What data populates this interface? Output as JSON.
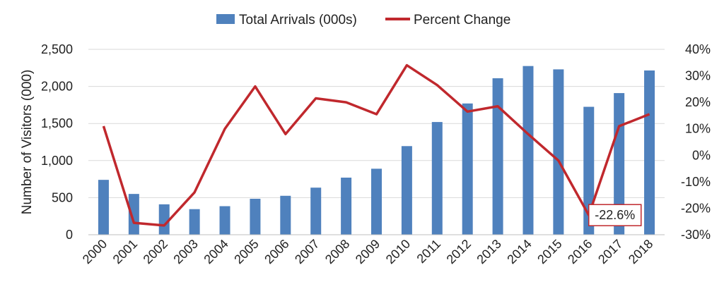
{
  "chart_data": {
    "type": "bar",
    "categories": [
      "2000",
      "2001",
      "2002",
      "2003",
      "2004",
      "2005",
      "2006",
      "2007",
      "2008",
      "2009",
      "2010",
      "2011",
      "2012",
      "2013",
      "2014",
      "2015",
      "2016",
      "2017",
      "2018"
    ],
    "series": [
      {
        "name": "Total Arrivals (000s)",
        "type": "bar",
        "axis": "left",
        "color": "#4f81bd",
        "values": [
          740,
          550,
          410,
          345,
          385,
          485,
          525,
          635,
          770,
          890,
          1195,
          1520,
          1770,
          2110,
          2275,
          2230,
          1725,
          1910,
          2215
        ]
      },
      {
        "name": "Percent Change",
        "type": "line",
        "axis": "right",
        "color": "#c0282d",
        "values": [
          11,
          -25.5,
          -26.5,
          -14,
          10,
          26,
          8,
          21.5,
          20,
          15.5,
          34,
          26.5,
          16.5,
          18.5,
          8,
          -2,
          -22.6,
          11,
          15.5
        ]
      }
    ],
    "ylabel": "Number of Visitors (000)",
    "ylim": [
      0,
      2500
    ],
    "y_ticks": [
      "0",
      "500",
      "1,000",
      "1,500",
      "2,000",
      "2,500"
    ],
    "y2lim": [
      -30,
      40
    ],
    "y2_ticks": [
      "-30%",
      "-20%",
      "-10%",
      "0%",
      "10%",
      "20%",
      "30%",
      "40%"
    ],
    "annotation": {
      "category": "2016",
      "text": "-22.6%"
    },
    "grid": true,
    "legend_position": "top"
  }
}
